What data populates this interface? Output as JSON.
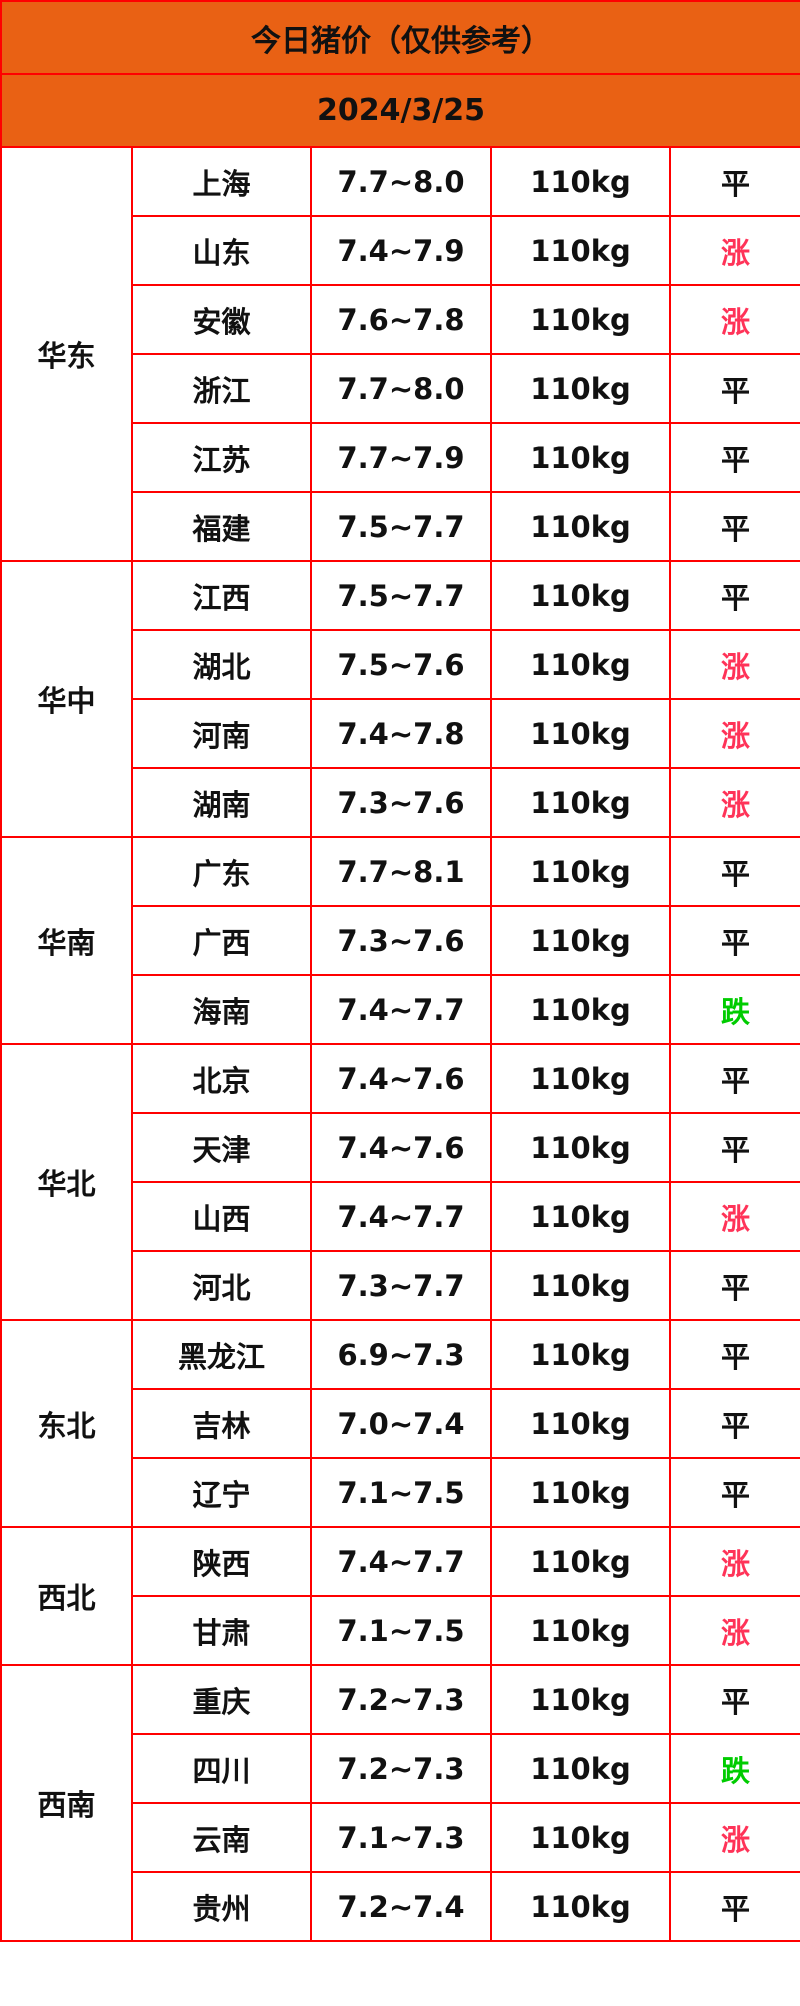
{
  "title": "今日猪价（仅供参考）",
  "date": "2024/3/25",
  "colors": {
    "header_bg": "#e96114",
    "border": "#ff0000",
    "up": "#ff3358",
    "down": "#00cc00",
    "flat": "#111111"
  },
  "regions": [
    {
      "name": "华东",
      "rows": [
        {
          "province": "上海",
          "price": "7.7~8.0",
          "weight": "110kg",
          "trend": "平"
        },
        {
          "province": "山东",
          "price": "7.4~7.9",
          "weight": "110kg",
          "trend": "涨"
        },
        {
          "province": "安徽",
          "price": "7.6~7.8",
          "weight": "110kg",
          "trend": "涨"
        },
        {
          "province": "浙江",
          "price": "7.7~8.0",
          "weight": "110kg",
          "trend": "平"
        },
        {
          "province": "江苏",
          "price": "7.7~7.9",
          "weight": "110kg",
          "trend": "平"
        },
        {
          "province": "福建",
          "price": "7.5~7.7",
          "weight": "110kg",
          "trend": "平"
        }
      ]
    },
    {
      "name": "华中",
      "rows": [
        {
          "province": "江西",
          "price": "7.5~7.7",
          "weight": "110kg",
          "trend": "平"
        },
        {
          "province": "湖北",
          "price": "7.5~7.6",
          "weight": "110kg",
          "trend": "涨"
        },
        {
          "province": "河南",
          "price": "7.4~7.8",
          "weight": "110kg",
          "trend": "涨"
        },
        {
          "province": "湖南",
          "price": "7.3~7.6",
          "weight": "110kg",
          "trend": "涨"
        }
      ]
    },
    {
      "name": "华南",
      "rows": [
        {
          "province": "广东",
          "price": "7.7~8.1",
          "weight": "110kg",
          "trend": "平"
        },
        {
          "province": "广西",
          "price": "7.3~7.6",
          "weight": "110kg",
          "trend": "平"
        },
        {
          "province": "海南",
          "price": "7.4~7.7",
          "weight": "110kg",
          "trend": "跌"
        }
      ]
    },
    {
      "name": "华北",
      "rows": [
        {
          "province": "北京",
          "price": "7.4~7.6",
          "weight": "110kg",
          "trend": "平"
        },
        {
          "province": "天津",
          "price": "7.4~7.6",
          "weight": "110kg",
          "trend": "平"
        },
        {
          "province": "山西",
          "price": "7.4~7.7",
          "weight": "110kg",
          "trend": "涨"
        },
        {
          "province": "河北",
          "price": "7.3~7.7",
          "weight": "110kg",
          "trend": "平"
        }
      ]
    },
    {
      "name": "东北",
      "rows": [
        {
          "province": "黑龙江",
          "price": "6.9~7.3",
          "weight": "110kg",
          "trend": "平"
        },
        {
          "province": "吉林",
          "price": "7.0~7.4",
          "weight": "110kg",
          "trend": "平"
        },
        {
          "province": "辽宁",
          "price": "7.1~7.5",
          "weight": "110kg",
          "trend": "平"
        }
      ]
    },
    {
      "name": "西北",
      "rows": [
        {
          "province": "陕西",
          "price": "7.4~7.7",
          "weight": "110kg",
          "trend": "涨"
        },
        {
          "province": "甘肃",
          "price": "7.1~7.5",
          "weight": "110kg",
          "trend": "涨"
        }
      ]
    },
    {
      "name": "西南",
      "rows": [
        {
          "province": "重庆",
          "price": "7.2~7.3",
          "weight": "110kg",
          "trend": "平"
        },
        {
          "province": "四川",
          "price": "7.2~7.3",
          "weight": "110kg",
          "trend": "跌"
        },
        {
          "province": "云南",
          "price": "7.1~7.3",
          "weight": "110kg",
          "trend": "涨"
        },
        {
          "province": "贵州",
          "price": "7.2~7.4",
          "weight": "110kg",
          "trend": "平"
        }
      ]
    }
  ]
}
